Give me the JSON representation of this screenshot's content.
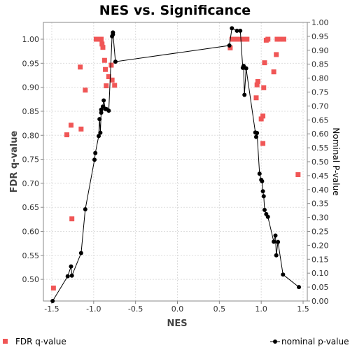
{
  "chart_data": {
    "type": "scatter",
    "title": "NES vs. Significance",
    "xlabel": "NES",
    "ylabel_left": "FDR q-value",
    "ylabel_right": "Nominal P-value",
    "xlim": [
      -1.6,
      1.55
    ],
    "ylim_left": [
      0.455,
      1.035
    ],
    "ylim_right": [
      0.0,
      1.0
    ],
    "xticks": [
      "-1.5",
      "-1.0",
      "-0.5",
      "0.0",
      "0.5",
      "1.0",
      "1.5"
    ],
    "yticks_left": [
      "0.50",
      "0.55",
      "0.60",
      "0.65",
      "0.70",
      "0.75",
      "0.80",
      "0.85",
      "0.90",
      "0.95",
      "1.00"
    ],
    "yticks_right": [
      "0.00",
      "0.05",
      "0.10",
      "0.15",
      "0.20",
      "0.25",
      "0.30",
      "0.35",
      "0.40",
      "0.45",
      "0.50",
      "0.55",
      "0.60",
      "0.65",
      "0.70",
      "0.75",
      "0.80",
      "0.85",
      "0.90",
      "0.95",
      "1.00"
    ],
    "grid": true,
    "colors": {
      "fdr": "#f05656",
      "nominal": "#000000",
      "grid": "#dddddd"
    },
    "series": [
      {
        "name": "FDR q-value",
        "axis": "left",
        "marker": "square",
        "points": [
          [
            -1.48,
            0.482
          ],
          [
            -1.32,
            0.801
          ],
          [
            -1.27,
            0.821
          ],
          [
            -1.26,
            0.626
          ],
          [
            -1.16,
            0.942
          ],
          [
            -1.15,
            0.813
          ],
          [
            -1.1,
            0.894
          ],
          [
            -0.97,
            1.0
          ],
          [
            -0.95,
            1.0
          ],
          [
            -0.93,
            1.0
          ],
          [
            -0.91,
            1.0
          ],
          [
            -0.9,
            0.99
          ],
          [
            -0.89,
            0.983
          ],
          [
            -0.87,
            0.956
          ],
          [
            -0.86,
            0.937
          ],
          [
            -0.85,
            0.903
          ],
          [
            -0.82,
            0.922
          ],
          [
            -0.79,
            0.946
          ],
          [
            -0.78,
            0.915
          ],
          [
            -0.75,
            0.904
          ],
          [
            0.63,
            0.982
          ],
          [
            0.65,
            1.0
          ],
          [
            0.68,
            1.0
          ],
          [
            0.71,
            1.0
          ],
          [
            0.74,
            1.0
          ],
          [
            0.77,
            1.0
          ],
          [
            0.8,
            1.0
          ],
          [
            0.83,
            1.0
          ],
          [
            0.95,
            0.905
          ],
          [
            0.96,
            0.912
          ],
          [
            0.94,
            0.878
          ],
          [
            1.0,
            0.834
          ],
          [
            1.02,
            0.84
          ],
          [
            1.02,
            0.783
          ],
          [
            1.03,
            0.899
          ],
          [
            1.04,
            0.951
          ],
          [
            1.06,
            0.998
          ],
          [
            1.08,
            1.0
          ],
          [
            1.15,
            0.932
          ],
          [
            1.18,
            0.968
          ],
          [
            1.19,
            1.0
          ],
          [
            1.22,
            1.0
          ],
          [
            1.27,
            1.0
          ],
          [
            1.44,
            0.718
          ]
        ]
      },
      {
        "name": "nominal p-value",
        "axis": "right",
        "marker": "circle-line",
        "points": [
          [
            -1.49,
            0.0
          ],
          [
            -1.31,
            0.089
          ],
          [
            -1.27,
            0.124
          ],
          [
            -1.26,
            0.091
          ],
          [
            -1.15,
            0.172
          ],
          [
            -1.1,
            0.329
          ],
          [
            -0.99,
            0.507
          ],
          [
            -0.98,
            0.531
          ],
          [
            -0.94,
            0.592
          ],
          [
            -0.93,
            0.653
          ],
          [
            -0.92,
            0.604
          ],
          [
            -0.91,
            0.687
          ],
          [
            -0.91,
            0.676
          ],
          [
            -0.89,
            0.698
          ],
          [
            -0.88,
            0.72
          ],
          [
            -0.86,
            0.689
          ],
          [
            -0.85,
            0.689
          ],
          [
            -0.82,
            0.683
          ],
          [
            -0.78,
            0.95
          ],
          [
            -0.77,
            0.957
          ],
          [
            -0.77,
            0.964
          ],
          [
            -0.74,
            0.859
          ],
          [
            0.62,
            0.917
          ],
          [
            0.65,
            0.979
          ],
          [
            0.71,
            0.97
          ],
          [
            0.75,
            0.97
          ],
          [
            0.78,
            0.837
          ],
          [
            0.79,
            0.844
          ],
          [
            0.8,
            0.74
          ],
          [
            0.82,
            0.835
          ],
          [
            0.93,
            0.605
          ],
          [
            0.94,
            0.589
          ],
          [
            0.95,
            0.603
          ],
          [
            0.98,
            0.457
          ],
          [
            1.0,
            0.435
          ],
          [
            1.01,
            0.43
          ],
          [
            1.02,
            0.394
          ],
          [
            1.03,
            0.376
          ],
          [
            1.04,
            0.327
          ],
          [
            1.06,
            0.312
          ],
          [
            1.08,
            0.302
          ],
          [
            1.15,
            0.213
          ],
          [
            1.17,
            0.235
          ],
          [
            1.18,
            0.164
          ],
          [
            1.2,
            0.212
          ],
          [
            1.26,
            0.095
          ],
          [
            1.45,
            0.05
          ]
        ]
      }
    ],
    "legend": [
      "FDR q-value",
      "nominal p-value"
    ]
  }
}
